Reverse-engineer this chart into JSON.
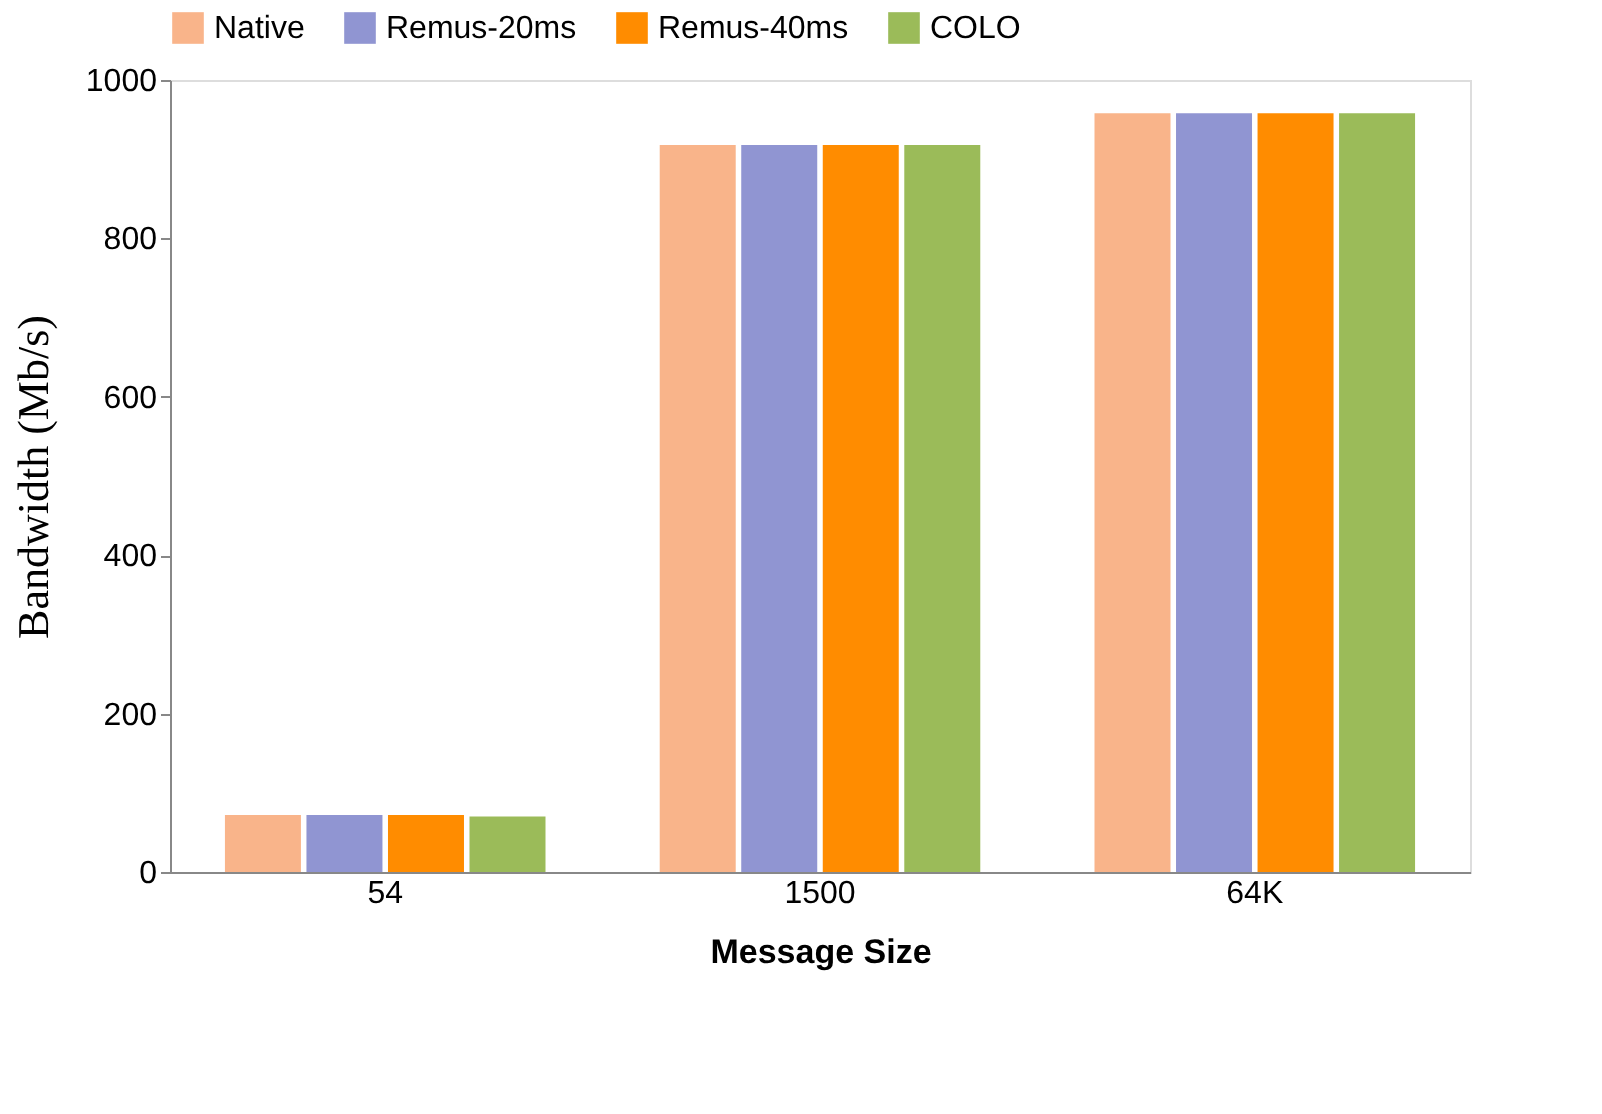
{
  "chart_data": {
    "type": "bar",
    "xlabel": "Message Size",
    "ylabel": "Bandwidth (Mb/s)",
    "categories": [
      "54",
      "1500",
      "64K"
    ],
    "series": [
      {
        "name": "Native",
        "color": "#f9b48a",
        "values": [
          72,
          918,
          958
        ]
      },
      {
        "name": "Remus-20ms",
        "color": "#9095d2",
        "values": [
          72,
          918,
          958
        ]
      },
      {
        "name": "Remus-40ms",
        "color": "#ff8c00",
        "values": [
          72,
          918,
          958
        ]
      },
      {
        "name": "COLO",
        "color": "#9bbb59",
        "values": [
          70,
          918,
          958
        ]
      }
    ],
    "ylim": [
      0,
      1000
    ],
    "yticks": [
      0,
      200,
      400,
      600,
      800,
      1000
    ],
    "grid": false,
    "legend": "top"
  }
}
